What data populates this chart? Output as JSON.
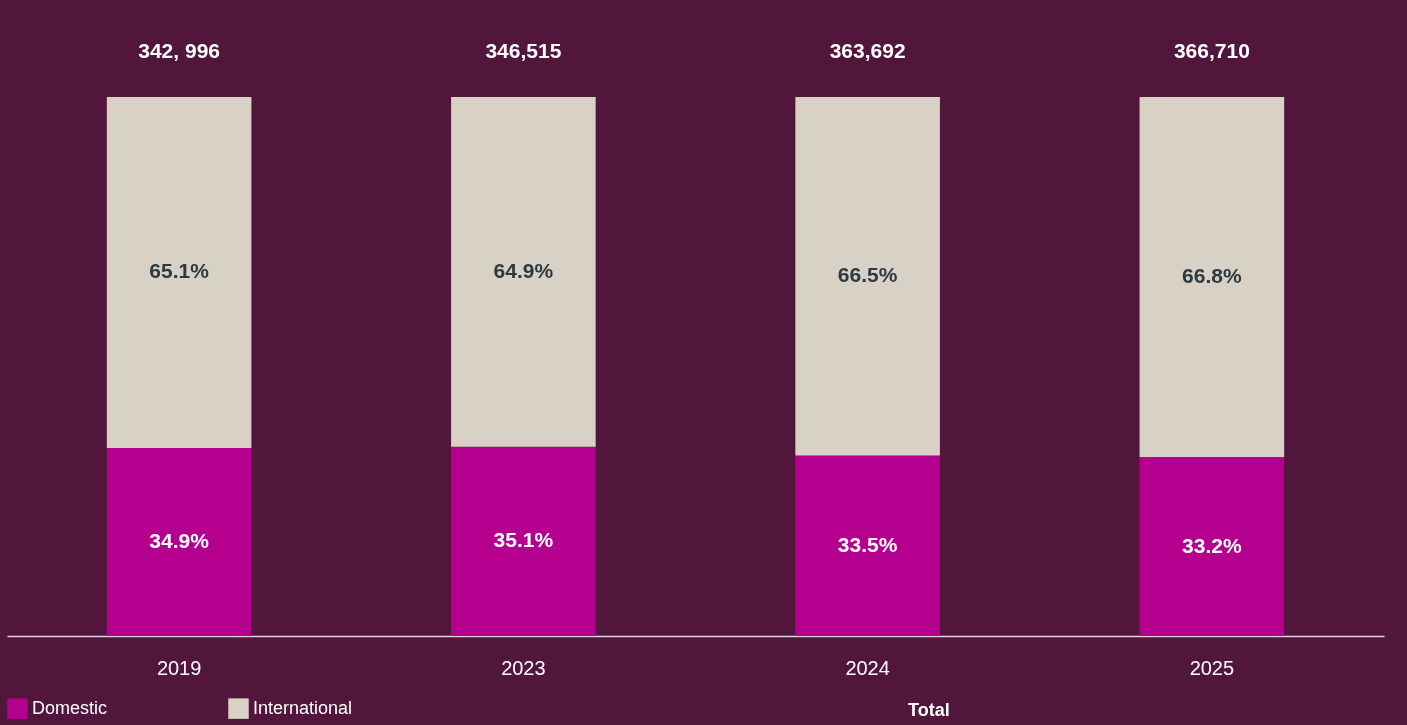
{
  "chart_data": {
    "type": "bar",
    "stacked": true,
    "categories": [
      "2019",
      "2023",
      "2024",
      "2025"
    ],
    "series": [
      {
        "name": "Domestic",
        "color": "#b5008f",
        "values": [
          34.9,
          35.1,
          33.5,
          33.2
        ],
        "value_labels": [
          "34.9%",
          "35.1%",
          "33.5%",
          "33.2%"
        ]
      },
      {
        "name": "International",
        "color": "#d8d1c5",
        "values": [
          65.1,
          64.9,
          66.5,
          66.8
        ],
        "value_labels": [
          "65.1%",
          "64.9%",
          "66.5%",
          "66.8%"
        ]
      }
    ],
    "legend": "bottom",
    "annotations": [
      {
        "text": "342, 996",
        "x": "2019",
        "y": 100
      },
      {
        "text": "346,515",
        "x": "2023",
        "y": 100
      },
      {
        "text": "363,692",
        "x": "2024",
        "y": 100
      },
      {
        "text": "366,710",
        "x": "2025",
        "y": 100
      },
      "Total"
    ]
  }
}
